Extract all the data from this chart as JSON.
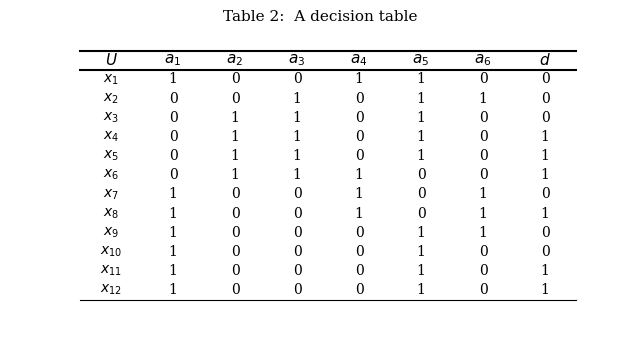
{
  "title": "Table 2:  A decision table",
  "col_headers": [
    "$U$",
    "$a_1$",
    "$a_2$",
    "$a_3$",
    "$a_4$",
    "$a_5$",
    "$a_6$",
    "$d$"
  ],
  "row_labels": [
    "$x_1$",
    "$x_2$",
    "$x_3$",
    "$x_4$",
    "$x_5$",
    "$x_6$",
    "$x_7$",
    "$x_8$",
    "$x_9$",
    "$x_{10}$",
    "$x_{11}$",
    "$x_{12}$"
  ],
  "table_data": [
    [
      1,
      0,
      0,
      1,
      1,
      0,
      0
    ],
    [
      0,
      0,
      1,
      0,
      1,
      1,
      0
    ],
    [
      0,
      1,
      1,
      0,
      1,
      0,
      0
    ],
    [
      0,
      1,
      1,
      0,
      1,
      0,
      1
    ],
    [
      0,
      1,
      1,
      0,
      1,
      0,
      1
    ],
    [
      0,
      1,
      1,
      1,
      0,
      0,
      1
    ],
    [
      1,
      0,
      0,
      1,
      0,
      1,
      0
    ],
    [
      1,
      0,
      0,
      1,
      0,
      1,
      1
    ],
    [
      1,
      0,
      0,
      0,
      1,
      1,
      0
    ],
    [
      1,
      0,
      0,
      0,
      1,
      0,
      0
    ],
    [
      1,
      0,
      0,
      0,
      1,
      0,
      1
    ],
    [
      1,
      0,
      0,
      0,
      1,
      0,
      1
    ]
  ],
  "background_color": "#ffffff",
  "text_color": "#000000",
  "title_fontsize": 11,
  "cell_fontsize": 10,
  "header_fontsize": 11
}
